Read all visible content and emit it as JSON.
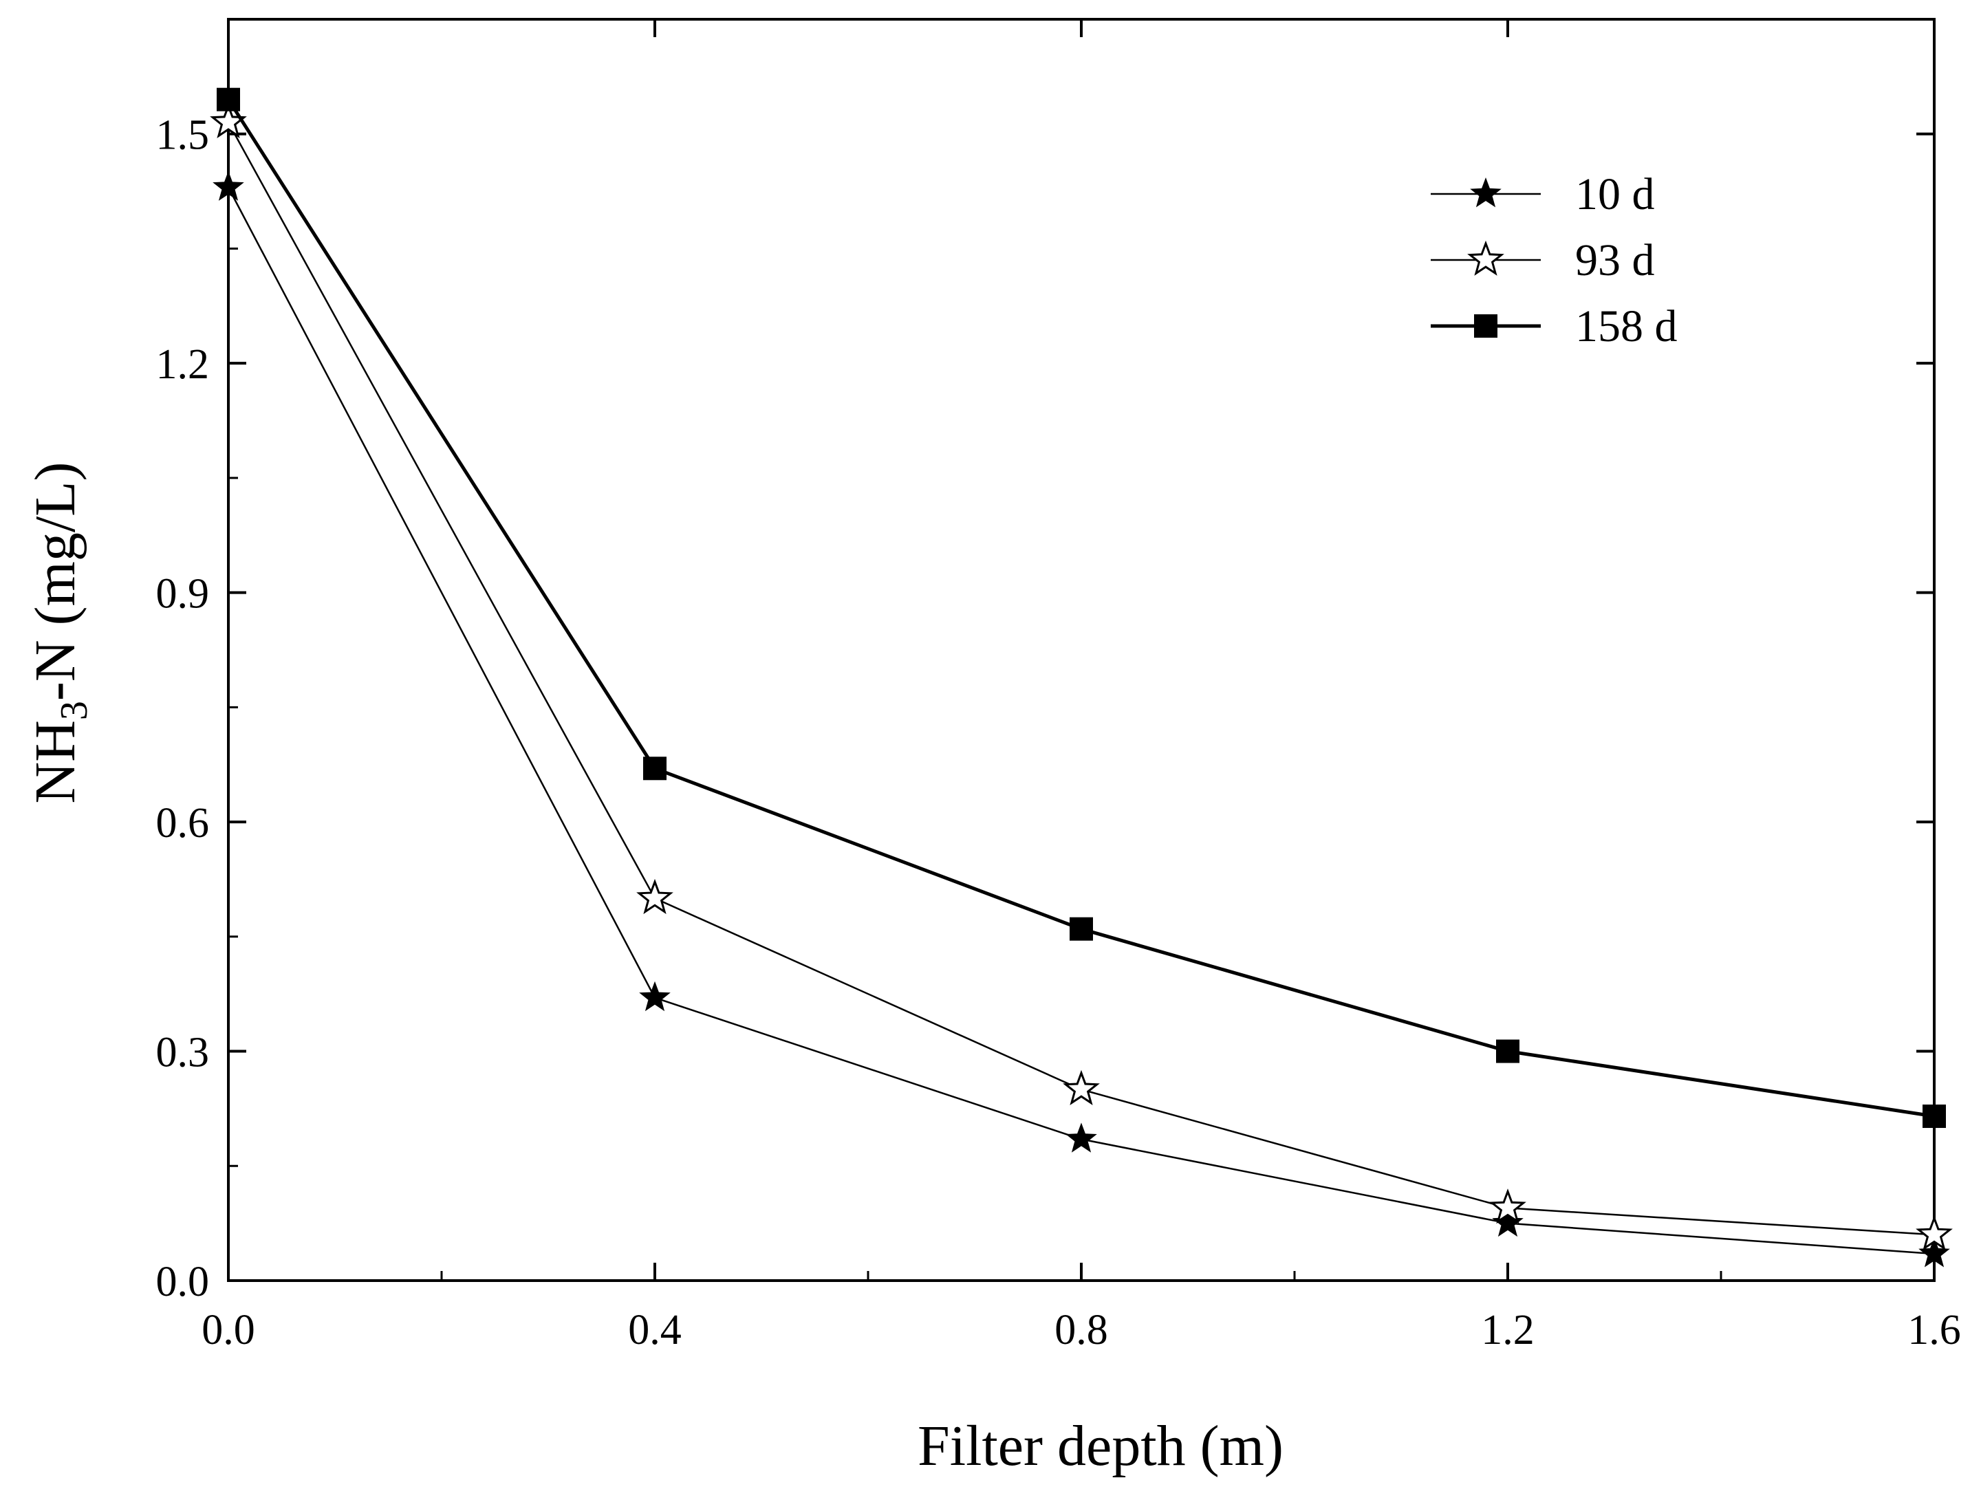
{
  "chart_data": {
    "type": "line",
    "xlabel": "Filter depth (m)",
    "ylabel_main": "NH",
    "ylabel_sub": "3",
    "ylabel_rest": "-N (mg/L)",
    "xlim": [
      0.0,
      1.6
    ],
    "ylim": [
      0.0,
      1.65
    ],
    "xticks": [
      "0.0",
      "0.4",
      "0.8",
      "1.2",
      "1.6"
    ],
    "xtick_values": [
      0.0,
      0.4,
      0.8,
      1.2,
      1.6
    ],
    "yticks": [
      "0.0",
      "0.3",
      "0.6",
      "0.9",
      "1.2",
      "1.5"
    ],
    "ytick_values": [
      0.0,
      0.3,
      0.6,
      0.9,
      1.2,
      1.5
    ],
    "x": [
      0.0,
      0.4,
      0.8,
      1.2,
      1.6
    ],
    "grid": false,
    "legend_position": "top-right",
    "series": [
      {
        "name": "10 d",
        "marker": "filled-star",
        "line": "thin",
        "values": [
          1.43,
          0.37,
          0.185,
          0.075,
          0.035
        ]
      },
      {
        "name": "93 d",
        "marker": "open-star",
        "line": "thin",
        "values": [
          1.515,
          0.5,
          0.25,
          0.095,
          0.06
        ]
      },
      {
        "name": "158 d",
        "marker": "filled-square",
        "line": "thick",
        "values": [
          1.545,
          0.67,
          0.46,
          0.3,
          0.215
        ]
      }
    ]
  }
}
